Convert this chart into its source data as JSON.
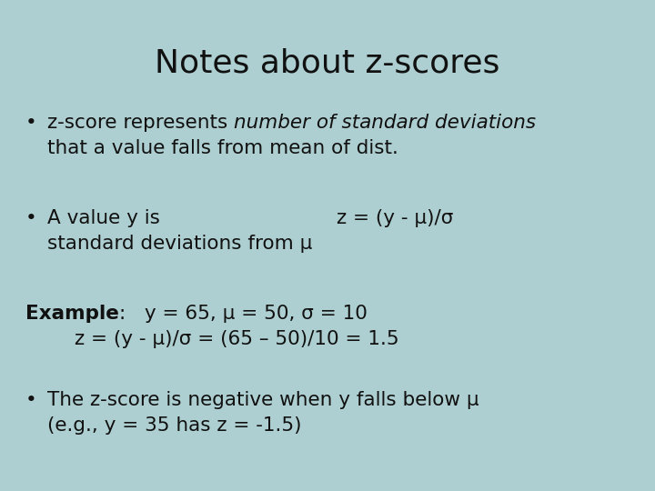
{
  "title": "Notes about z-scores",
  "background_color": "#aecfd1",
  "title_fontsize": 26,
  "title_color": "#111111",
  "text_color": "#111111",
  "body_fontsize": 15.5,
  "bullet1_normal": "z-score represents ",
  "bullet1_italic": "number of standard deviations",
  "bullet1_line2": "that a value falls from mean of dist.",
  "bullet2_left": "A value y is",
  "bullet2_right": "z = (y - μ)/σ",
  "bullet2_line2": "standard deviations from μ",
  "example_bold": "Example",
  "example_rest": ":   y = 65, μ = 50, σ = 10",
  "example_line2": "z = (y - μ)/σ = (65 – 50)/10 = 1.5",
  "bullet3_line1": "The z-score is negative when y falls below μ",
  "bullet3_line2": "(e.g., y = 35 has z = -1.5)"
}
